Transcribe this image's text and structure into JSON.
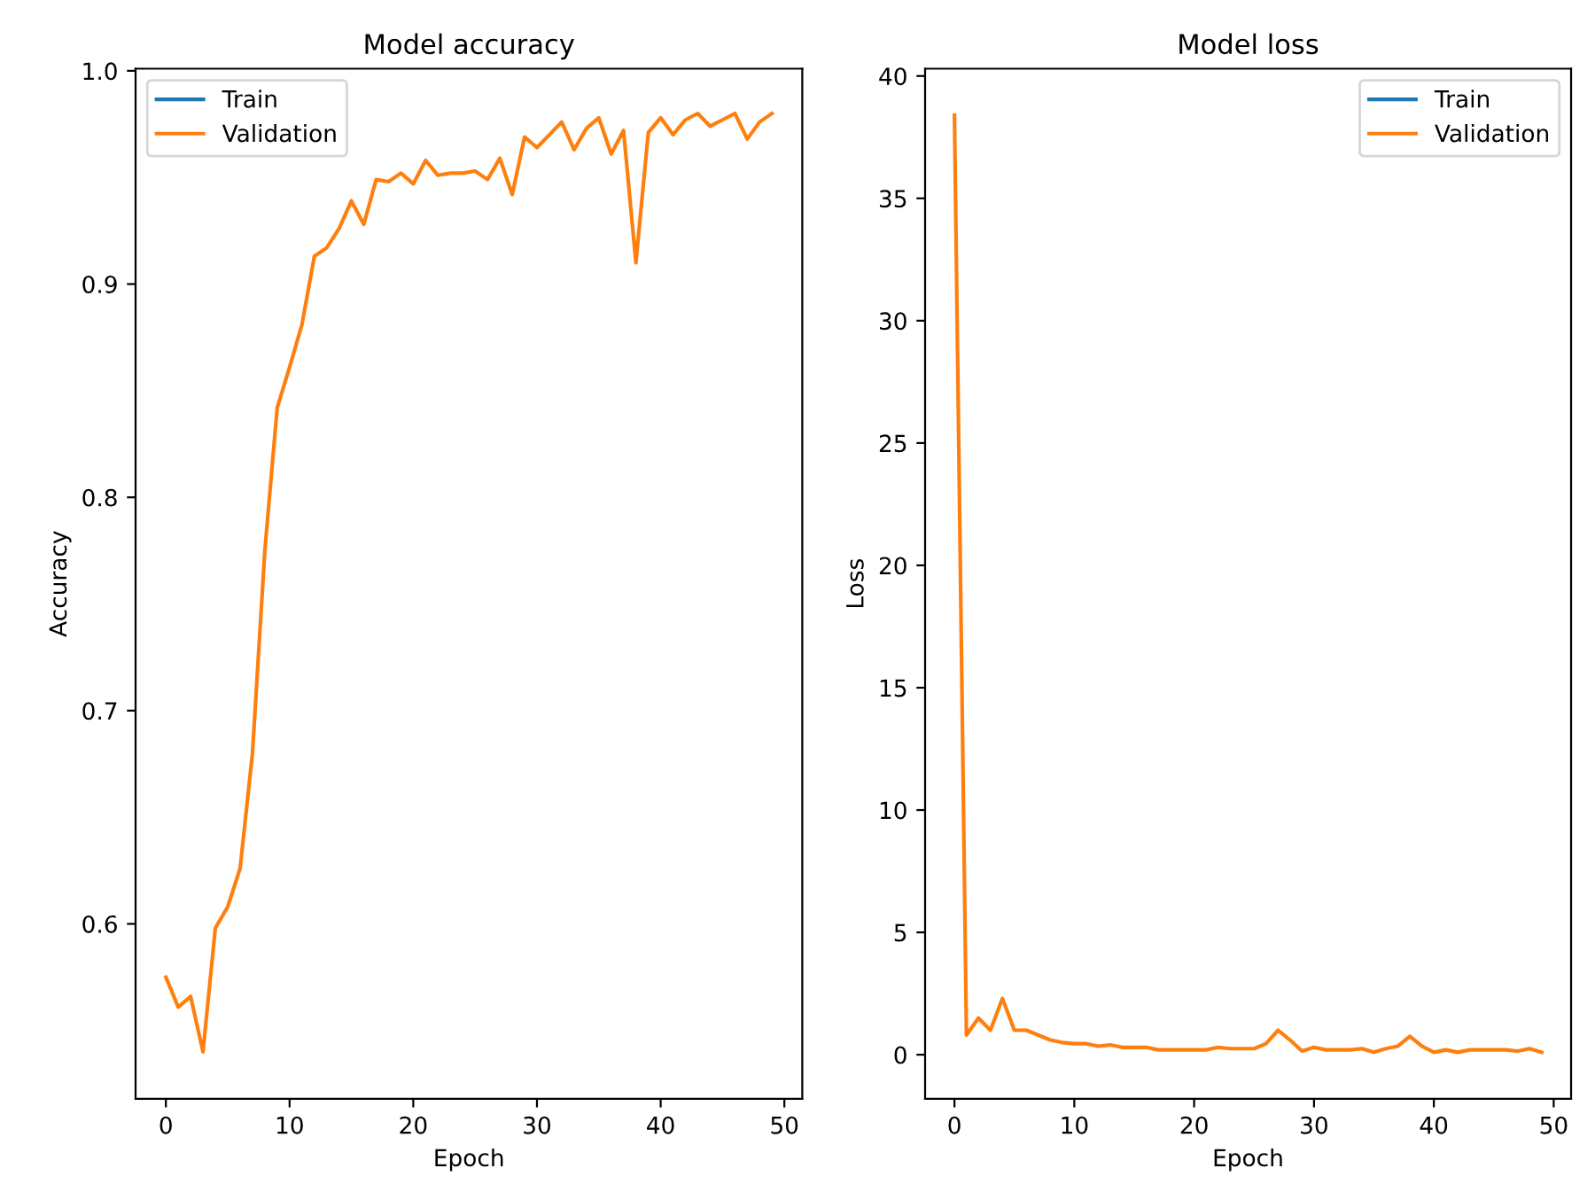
{
  "chart_data": [
    {
      "type": "line",
      "title": "Model accuracy",
      "xlabel": "Epoch",
      "ylabel": "Accuracy",
      "x": [
        0,
        1,
        2,
        3,
        4,
        5,
        6,
        7,
        8,
        9,
        10,
        11,
        12,
        13,
        14,
        15,
        16,
        17,
        18,
        19,
        20,
        21,
        22,
        23,
        24,
        25,
        26,
        27,
        28,
        29,
        30,
        31,
        32,
        33,
        34,
        35,
        36,
        37,
        38,
        39,
        40,
        41,
        42,
        43,
        44,
        45,
        46,
        47,
        48,
        49
      ],
      "series": [
        {
          "name": "Train",
          "color": "#1f77b4",
          "values": [
            null,
            null,
            null,
            null,
            null,
            null,
            null,
            null,
            null,
            null,
            null,
            null,
            null,
            null,
            null,
            null,
            null,
            null,
            null,
            null,
            null,
            null,
            null,
            null,
            null,
            null,
            null,
            null,
            null,
            null,
            null,
            null,
            null,
            null,
            null,
            null,
            null,
            null,
            null,
            null,
            null,
            null,
            null,
            null,
            null,
            null,
            null,
            null,
            null,
            null
          ]
        },
        {
          "name": "Validation",
          "color": "#ff7f0e",
          "values": [
            0.575,
            0.561,
            0.566,
            0.54,
            0.598,
            0.608,
            0.626,
            0.68,
            0.775,
            0.842,
            0.861,
            0.881,
            0.913,
            0.917,
            0.926,
            0.939,
            0.928,
            0.949,
            0.948,
            0.952,
            0.947,
            0.958,
            0.951,
            0.952,
            0.952,
            0.953,
            0.949,
            0.959,
            0.942,
            0.969,
            0.964,
            0.97,
            0.976,
            0.963,
            0.973,
            0.978,
            0.961,
            0.972,
            0.91,
            0.971,
            0.978,
            0.97,
            0.977,
            0.98,
            0.974,
            0.977,
            0.98,
            0.968,
            0.976,
            0.98
          ]
        }
      ],
      "xlim": [
        -2.45,
        51.45
      ],
      "xticks": [
        0,
        10,
        20,
        30,
        40,
        50
      ],
      "ylim": [
        0.518,
        1.001
      ],
      "yticks": [
        0.6,
        0.7,
        0.8,
        0.9,
        {
          "value": 1.0,
          "label": "1.0"
        }
      ],
      "grid": false,
      "legend": "top left",
      "marker": "none",
      "line_style": "solid"
    },
    {
      "type": "line",
      "title": "Model loss",
      "xlabel": "Epoch",
      "ylabel": "Loss",
      "x": [
        0,
        1,
        2,
        3,
        4,
        5,
        6,
        7,
        8,
        9,
        10,
        11,
        12,
        13,
        14,
        15,
        16,
        17,
        18,
        19,
        20,
        21,
        22,
        23,
        24,
        25,
        26,
        27,
        28,
        29,
        30,
        31,
        32,
        33,
        34,
        35,
        36,
        37,
        38,
        39,
        40,
        41,
        42,
        43,
        44,
        45,
        46,
        47,
        48,
        49
      ],
      "series": [
        {
          "name": "Train",
          "color": "#1f77b4",
          "values": [
            null,
            null,
            null,
            null,
            null,
            null,
            null,
            null,
            null,
            null,
            null,
            null,
            null,
            null,
            null,
            null,
            null,
            null,
            null,
            null,
            null,
            null,
            null,
            null,
            null,
            null,
            null,
            null,
            null,
            null,
            null,
            null,
            null,
            null,
            null,
            null,
            null,
            null,
            null,
            null,
            null,
            null,
            null,
            null,
            null,
            null,
            null,
            null,
            null,
            null
          ]
        },
        {
          "name": "Validation",
          "color": "#ff7f0e",
          "values": [
            38.4,
            0.8,
            1.5,
            1.0,
            2.3,
            1.0,
            1.0,
            0.8,
            0.6,
            0.5,
            0.45,
            0.45,
            0.35,
            0.4,
            0.3,
            0.3,
            0.3,
            0.2,
            0.2,
            0.2,
            0.2,
            0.2,
            0.3,
            0.25,
            0.25,
            0.25,
            0.45,
            1.0,
            0.6,
            0.15,
            0.3,
            0.2,
            0.2,
            0.2,
            0.25,
            0.1,
            0.25,
            0.35,
            0.75,
            0.35,
            0.1,
            0.2,
            0.1,
            0.2,
            0.2,
            0.2,
            0.2,
            0.15,
            0.25,
            0.1
          ]
        }
      ],
      "xlim": [
        -2.45,
        51.45
      ],
      "xticks": [
        0,
        10,
        20,
        30,
        40,
        50
      ],
      "ylim": [
        -1.8,
        40.3
      ],
      "yticks": [
        0,
        5,
        10,
        15,
        20,
        25,
        30,
        35,
        40
      ],
      "grid": false,
      "legend": "top right",
      "marker": "none",
      "line_style": "solid"
    }
  ]
}
